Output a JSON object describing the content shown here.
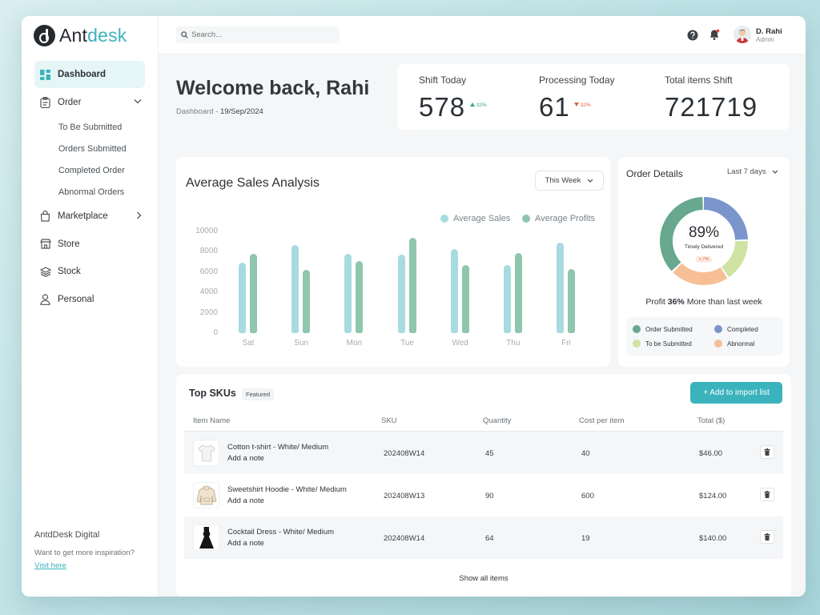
{
  "brand": {
    "name_part1": "Ant",
    "name_part2": "desk"
  },
  "sidebar": {
    "items": [
      {
        "label": "Dashboard"
      },
      {
        "label": "Order"
      },
      {
        "label": "Marketplace"
      },
      {
        "label": "Store"
      },
      {
        "label": "Stock"
      },
      {
        "label": "Personal"
      }
    ],
    "order_sub": [
      "To Be Submitted",
      "Orders Submitted",
      "Completed Order",
      "Abnormal Orders"
    ],
    "footer": {
      "title": "AntdDesk Digital",
      "desc": "Want to get more inspiration?",
      "link": "Visit here"
    }
  },
  "topbar": {
    "search_placeholder": "Search...",
    "user_name": "D. Rahi",
    "user_role": "Admin"
  },
  "welcome": {
    "title": "Welcome back, Rahi",
    "crumb_root": "Dashboard",
    "crumb_sep": " - ",
    "crumb_date": "19/Sep/2024"
  },
  "stats": [
    {
      "label": "Shift Today",
      "value": "578",
      "delta": "32%",
      "direction": "up",
      "color": "#3aa57a"
    },
    {
      "label": "Processing Today",
      "value": "61",
      "delta": "32%",
      "direction": "down",
      "color": "#e0643c"
    },
    {
      "label": "Total items Shift",
      "value": "721719"
    }
  ],
  "sales": {
    "title": "Average Sales Analysis",
    "range": "This Week",
    "legend": [
      "Average Sales",
      "Average Profits"
    ],
    "colors": {
      "sales": "#a8dbe0",
      "profits": "#8fc6ad"
    }
  },
  "chart_data": {
    "type": "bar",
    "categories": [
      "Sat",
      "Sun",
      "Mon",
      "Tue",
      "Wed",
      "Thu",
      "Fri"
    ],
    "series": [
      {
        "name": "Average Sales",
        "values": [
          6900,
          8700,
          7800,
          7700,
          8300,
          6700,
          8900
        ]
      },
      {
        "name": "Average Profits",
        "values": [
          7800,
          6200,
          7100,
          9400,
          6700,
          7900,
          6300
        ]
      }
    ],
    "yticks": [
      "0",
      "2000",
      "4000",
      "6000",
      "8000",
      "10000"
    ],
    "ylim": [
      0,
      10000
    ],
    "grid": false,
    "legend_position": "top-right"
  },
  "order_details": {
    "title": "Order Details",
    "range": "Last 7 days",
    "percent": "89%",
    "caption": "Timely Delivered",
    "delta": "> 7%",
    "profit_prefix": "Profit ",
    "profit_value": "36%",
    "profit_suffix": " More than last week",
    "segments": [
      {
        "label": "Order Submitted",
        "value": 37,
        "color": "#67a88f"
      },
      {
        "label": "Completed",
        "value": 25,
        "color": "#7a94cc"
      },
      {
        "label": "To be Submitted",
        "value": 16,
        "color": "#cfe3a2"
      },
      {
        "label": "Abnormal",
        "value": 22,
        "color": "#f6bf96"
      }
    ]
  },
  "skus": {
    "title": "Top SKUs",
    "badge": "Featured",
    "add_button": "+ Add to import list",
    "headers": [
      "Item Name",
      "SKU",
      "Quantity",
      "Cost per item",
      "Total ($)"
    ],
    "rows": [
      {
        "name": "Cotton t-shirt - White/ Medium",
        "note": "Add a note",
        "sku": "202408W14",
        "qty": "45",
        "cost": "40",
        "total": "$46.00",
        "icon": "tshirt-icon"
      },
      {
        "name": "Sweetshirt Hoodie - White/ Medium",
        "note": "Add a note",
        "sku": "202408W13",
        "qty": "90",
        "cost": "600",
        "total": "$124.00",
        "icon": "hoodie-icon"
      },
      {
        "name": "Cocktail Dress - White/ Medium",
        "note": "Add a note",
        "sku": "202408W14",
        "qty": "64",
        "cost": "19",
        "total": "$140.00",
        "icon": "dress-icon"
      }
    ],
    "show_all": "Show all items"
  }
}
